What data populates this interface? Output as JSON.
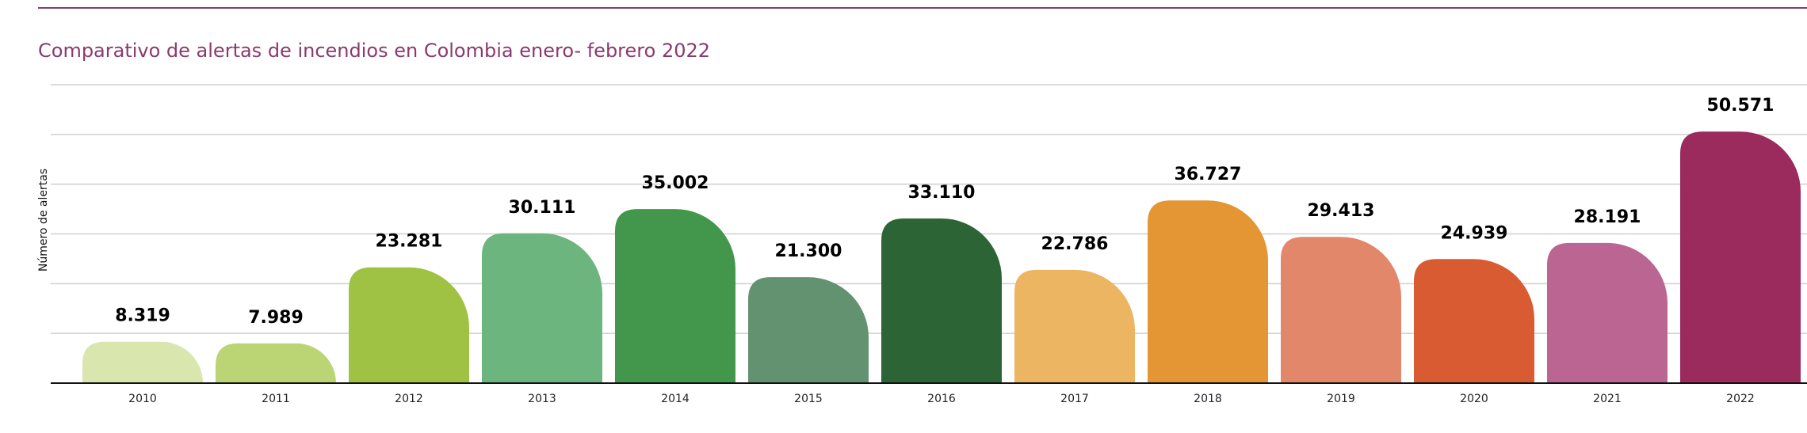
{
  "chart_data": {
    "type": "bar",
    "title": "Comparativo de alertas de incendios en Colombia enero- febrero 2022",
    "xlabel": "",
    "ylabel": "Número de alertas",
    "categories": [
      "2010",
      "2011",
      "2012",
      "2013",
      "2014",
      "2015",
      "2016",
      "2017",
      "2018",
      "2019",
      "2020",
      "2021",
      "2022"
    ],
    "values": [
      8319,
      7989,
      23281,
      30111,
      35002,
      21300,
      33110,
      22786,
      36727,
      29413,
      24939,
      28191,
      50571
    ],
    "value_labels": [
      "8.319",
      "7.989",
      "23.281",
      "30.111",
      "35.002",
      "21.300",
      "33.110",
      "22.786",
      "36.727",
      "29.413",
      "24.939",
      "28.191",
      "50.571"
    ],
    "colors": [
      "#d9e6ad",
      "#bcd574",
      "#9fc245",
      "#6db57f",
      "#43974c",
      "#62926f",
      "#2d6436",
      "#ebb562",
      "#e39633",
      "#e2876a",
      "#d95b31",
      "#bb6592",
      "#9b2a5d"
    ],
    "ylim": [
      0,
      60000
    ],
    "grid": true,
    "legend": "none"
  }
}
